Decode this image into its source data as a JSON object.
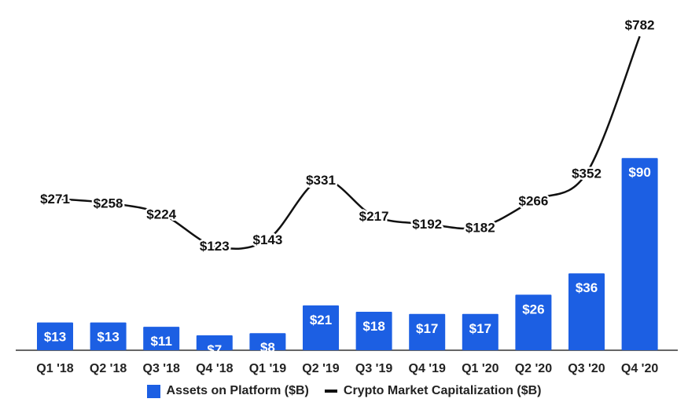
{
  "chart_data": {
    "type": "bar",
    "categories": [
      "Q1 '18",
      "Q2 '18",
      "Q3 '18",
      "Q4 '18",
      "Q1 '19",
      "Q2 '19",
      "Q3 '19",
      "Q4 '19",
      "Q1 '20",
      "Q2 '20",
      "Q3 '20",
      "Q4 '20"
    ],
    "series": [
      {
        "name": "Assets on Platform ($B)",
        "type": "bar",
        "color": "#1c5fe3",
        "values": [
          13,
          13,
          11,
          7,
          8,
          21,
          18,
          17,
          17,
          26,
          36,
          90
        ]
      },
      {
        "name": "Crypto Market Capitalization ($B)",
        "type": "line",
        "color": "#111111",
        "values": [
          271,
          258,
          224,
          123,
          143,
          331,
          217,
          192,
          182,
          266,
          352,
          782
        ]
      }
    ],
    "value_prefix": "$",
    "grid": false,
    "legend_placement": "bottom"
  }
}
